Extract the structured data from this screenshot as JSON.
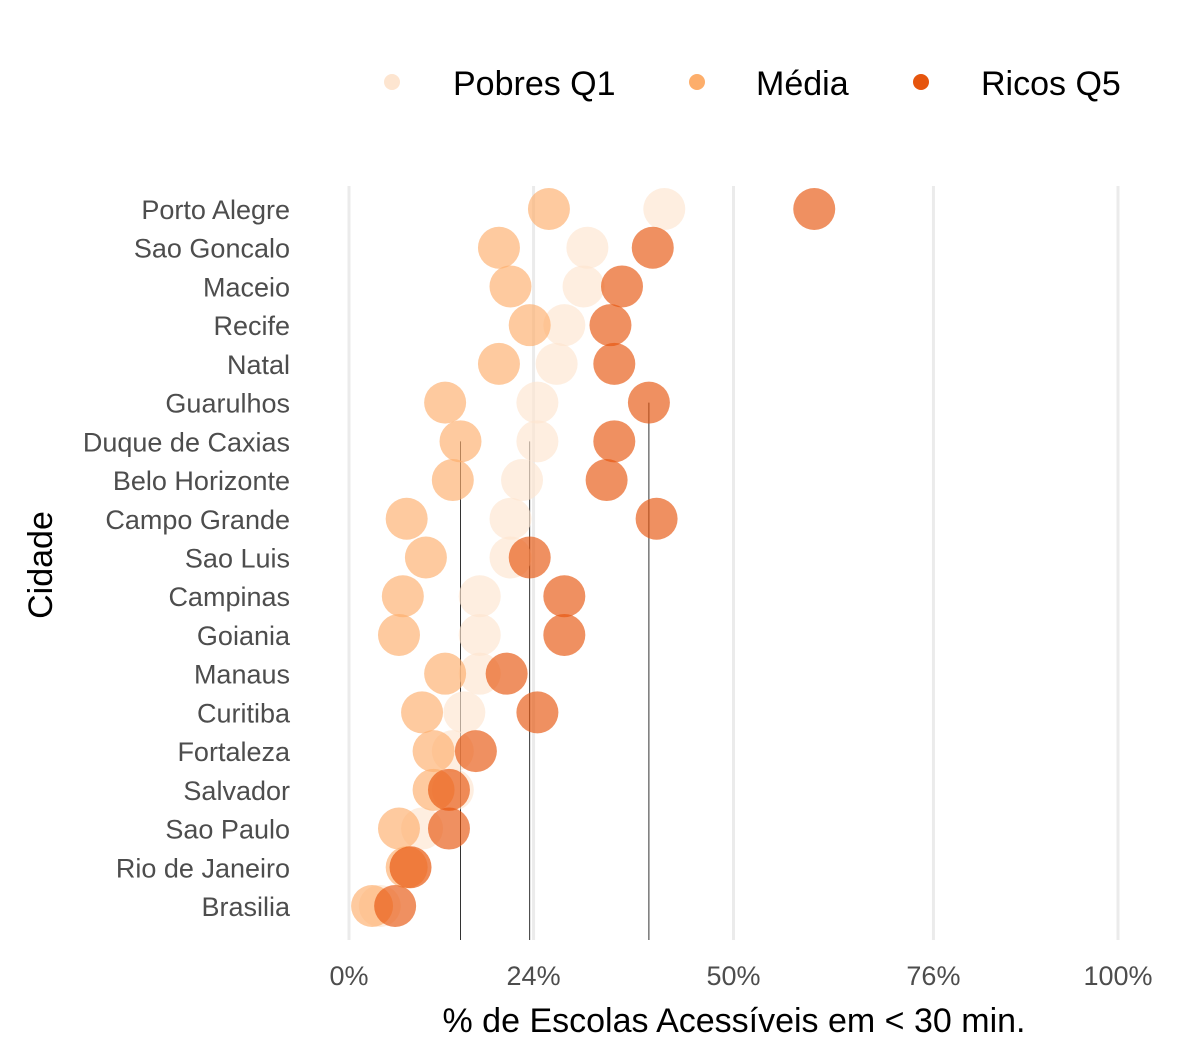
{
  "chart_data": {
    "type": "scatter",
    "xlabel": "% de Escolas Acessíveis em < 30 min.",
    "ylabel": "Cidade",
    "xlim": [
      0,
      100
    ],
    "x_ticks": [
      0,
      24,
      50,
      76,
      100
    ],
    "x_tick_labels": [
      "0%",
      "24%",
      "50%",
      "76%",
      "100%"
    ],
    "grid": "vertical major",
    "legend": "top",
    "legend_entries": [
      "Pobres Q1",
      "Média",
      "Ricos Q5"
    ],
    "categories": [
      "Porto Alegre",
      "Sao Goncalo",
      "Maceio",
      "Recife",
      "Natal",
      "Guarulhos",
      "Duque de Caxias",
      "Belo Horizonte",
      "Campo Grande",
      "Sao Luis",
      "Campinas",
      "Goiania",
      "Manaus",
      "Curitiba",
      "Fortaleza",
      "Salvador",
      "Sao Paulo",
      "Rio de Janeiro",
      "Brasilia"
    ],
    "series": [
      {
        "name": "Pobres Q1",
        "color": "#fde5d0",
        "values": [
          41,
          31,
          30.5,
          28,
          27,
          24.5,
          24.5,
          22.5,
          21,
          21,
          17,
          17,
          17,
          15,
          13.5,
          13.5,
          9.5,
          8,
          4
        ]
      },
      {
        "name": "Média",
        "color": "#fdae6b",
        "values": [
          26,
          19.5,
          21,
          23.5,
          19.5,
          12.5,
          14.5,
          13.5,
          7.5,
          10,
          7,
          6.5,
          12.5,
          9.5,
          11,
          11,
          6.5,
          7.5,
          3
        ]
      },
      {
        "name": "Ricos Q5",
        "color": "#e6550d",
        "values": [
          60.5,
          39.5,
          35.5,
          34,
          34.5,
          39,
          34.5,
          33.5,
          40,
          23.5,
          28,
          28,
          20.5,
          24.5,
          16.5,
          13,
          13,
          8,
          6
        ]
      }
    ],
    "reference_lines": [
      14.5,
      23.5,
      39
    ]
  }
}
